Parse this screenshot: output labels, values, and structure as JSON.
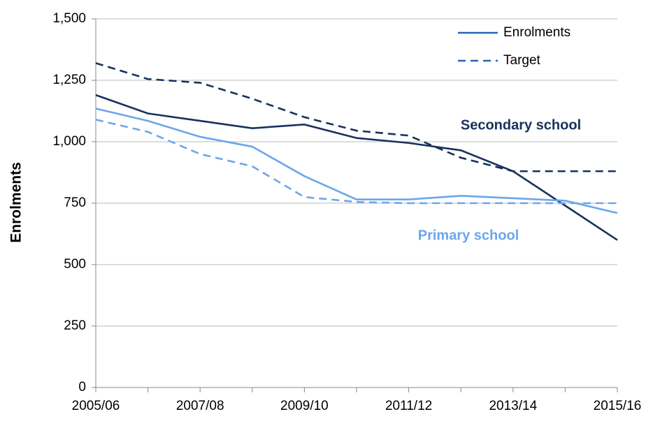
{
  "chart_data": {
    "type": "line",
    "y_label": "Enrolments",
    "categories": [
      "2005/06",
      null,
      "2007/08",
      null,
      "2009/10",
      null,
      "2011/12",
      null,
      "2013/14",
      null,
      "2015/16"
    ],
    "ylim": [
      0,
      1500
    ],
    "yticks": [
      0,
      250,
      500,
      750,
      {
        "value": 1000,
        "label": "1,000"
      },
      {
        "value": 1250,
        "label": "1,250"
      },
      {
        "value": 1500,
        "label": "1,500"
      }
    ],
    "grid": true,
    "legend_position": "upper right",
    "legend": [
      {
        "name": "Enrolments",
        "style": "solid",
        "color": "#2266b8"
      },
      {
        "name": "Target",
        "style": "dashed",
        "color": "#2266b8"
      }
    ],
    "groups": [
      {
        "label": "Secondary school",
        "color": "#17325e",
        "lines": [
          {
            "style": "solid",
            "values": [
              1190,
              1115,
              1085,
              1055,
              1070,
              1015,
              995,
              965,
              880,
              740,
              600
            ]
          },
          {
            "style": "dashed",
            "values": [
              1320,
              1255,
              1240,
              1175,
              1100,
              1045,
              1025,
              935,
              880,
              880,
              880
            ]
          }
        ]
      },
      {
        "label": "Primary school",
        "color": "#6ca6ea",
        "lines": [
          {
            "style": "solid",
            "values": [
              1135,
              1085,
              1020,
              980,
              860,
              765,
              765,
              780,
              770,
              760,
              710
            ]
          },
          {
            "style": "dashed",
            "values": [
              1090,
              1040,
              950,
              900,
              775,
              755,
              750,
              750,
              750,
              750,
              750
            ]
          }
        ]
      }
    ]
  }
}
